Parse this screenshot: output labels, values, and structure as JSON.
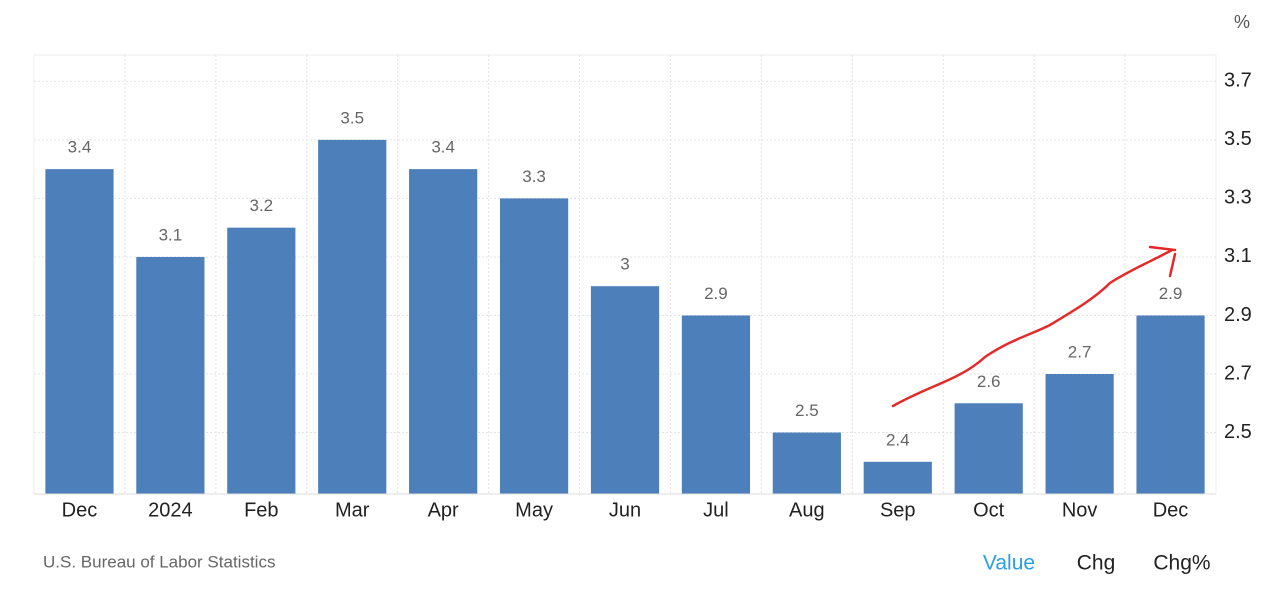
{
  "chart_data": {
    "type": "bar",
    "unit": "%",
    "source": "U.S. Bureau of Labor Statistics",
    "tabs": [
      "Value",
      "Chg",
      "Chg%"
    ],
    "categories": [
      "Dec",
      "2024",
      "Feb",
      "Mar",
      "Apr",
      "May",
      "Jun",
      "Jul",
      "Aug",
      "Sep",
      "Oct",
      "Nov",
      "Dec"
    ],
    "values": [
      3.4,
      3.1,
      3.2,
      3.5,
      3.4,
      3.3,
      3,
      2.9,
      2.5,
      2.4,
      2.6,
      2.7,
      2.9
    ],
    "color": "#4d7fbb",
    "ylim": [
      2.29,
      3.79
    ],
    "yticks": [
      2.5,
      2.7,
      2.9,
      3.1,
      3.3,
      3.5,
      3.7
    ],
    "grid": true,
    "y_axis_side": "right"
  }
}
